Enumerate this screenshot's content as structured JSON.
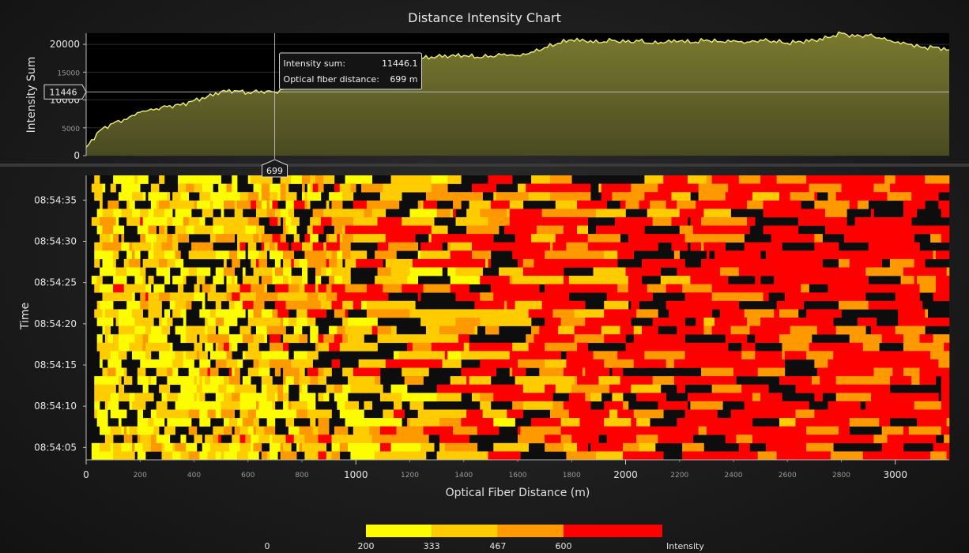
{
  "chart_data": [
    {
      "type": "area",
      "title": "Distance Intensity Chart",
      "xlabel": "",
      "ylabel": "Intensity Sum",
      "xlim": [
        0,
        3200
      ],
      "ylim": [
        0,
        22000
      ],
      "y_ticks": [
        0,
        5000,
        10000,
        15000,
        20000
      ],
      "color": "#e8e870",
      "points": [
        [
          0,
          1500
        ],
        [
          50,
          4500
        ],
        [
          100,
          5800
        ],
        [
          150,
          6500
        ],
        [
          200,
          7800
        ],
        [
          250,
          8200
        ],
        [
          300,
          8800
        ],
        [
          350,
          9100
        ],
        [
          400,
          9900
        ],
        [
          450,
          10600
        ],
        [
          500,
          11500
        ],
        [
          550,
          11700
        ],
        [
          600,
          11300
        ],
        [
          650,
          11600
        ],
        [
          699,
          11446
        ],
        [
          750,
          12300
        ],
        [
          800,
          13000
        ],
        [
          850,
          13500
        ],
        [
          900,
          14200
        ],
        [
          950,
          15000
        ],
        [
          1000,
          15800
        ],
        [
          1050,
          16300
        ],
        [
          1100,
          17000
        ],
        [
          1150,
          17300
        ],
        [
          1200,
          17600
        ],
        [
          1250,
          17500
        ],
        [
          1300,
          17800
        ],
        [
          1350,
          17900
        ],
        [
          1400,
          18000
        ],
        [
          1450,
          17700
        ],
        [
          1500,
          17900
        ],
        [
          1550,
          18300
        ],
        [
          1600,
          18000
        ],
        [
          1650,
          18600
        ],
        [
          1700,
          19400
        ],
        [
          1750,
          20200
        ],
        [
          1800,
          20800
        ],
        [
          1850,
          20600
        ],
        [
          1900,
          20300
        ],
        [
          1950,
          20700
        ],
        [
          2000,
          20400
        ],
        [
          2050,
          20600
        ],
        [
          2100,
          20100
        ],
        [
          2150,
          20400
        ],
        [
          2200,
          20600
        ],
        [
          2250,
          20300
        ],
        [
          2300,
          20800
        ],
        [
          2350,
          20500
        ],
        [
          2400,
          20700
        ],
        [
          2450,
          20400
        ],
        [
          2500,
          20800
        ],
        [
          2550,
          20600
        ],
        [
          2600,
          20200
        ],
        [
          2650,
          20500
        ],
        [
          2700,
          20700
        ],
        [
          2750,
          21200
        ],
        [
          2800,
          22000
        ],
        [
          2850,
          21400
        ],
        [
          2900,
          21600
        ],
        [
          2950,
          21000
        ],
        [
          3000,
          20300
        ],
        [
          3050,
          20000
        ],
        [
          3100,
          19400
        ],
        [
          3150,
          19500
        ],
        [
          3200,
          19000
        ]
      ],
      "crosshair": {
        "x": 699,
        "y": 11446,
        "x_label": "699",
        "y_label": "11446"
      },
      "tooltip": {
        "row1_label": "Intensity sum:",
        "row1_value": "11446.1",
        "row2_label": "Optical fiber distance:",
        "row2_value": "699 m"
      }
    },
    {
      "type": "heatmap",
      "xlabel": "Optical Fiber Distance (m)",
      "ylabel": "Time",
      "xlim": [
        0,
        3200
      ],
      "x_major_ticks": [
        0,
        1000,
        2000,
        3000
      ],
      "x_minor_ticks": [
        200,
        400,
        600,
        800,
        1200,
        1400,
        1600,
        1800,
        2200,
        2400,
        2600,
        2800
      ],
      "time_range": [
        "08:54:03.5",
        "08:54:38"
      ],
      "y_tick_labels": [
        "08:54:05",
        "08:54:10",
        "08:54:15",
        "08:54:20",
        "08:54:25",
        "08:54:30",
        "08:54:35"
      ],
      "row_count": 34,
      "column_count": 320,
      "background": "#0d0d0d",
      "colors": [
        "#fdfd00",
        "#ffcc00",
        "#ff9900",
        "#ff0000"
      ],
      "legend": {
        "title": "Intensity",
        "steps": [
          {
            "from": 200,
            "to": 333,
            "color": "#fdfd00"
          },
          {
            "from": 333,
            "to": 467,
            "color": "#ffcc00"
          },
          {
            "from": 467,
            "to": 600,
            "color": "#ff9900"
          },
          {
            "from": 600,
            "to": 800,
            "color": "#ff0000"
          }
        ],
        "labels": [
          "0",
          "200",
          "333",
          "467",
          "600"
        ]
      }
    }
  ]
}
